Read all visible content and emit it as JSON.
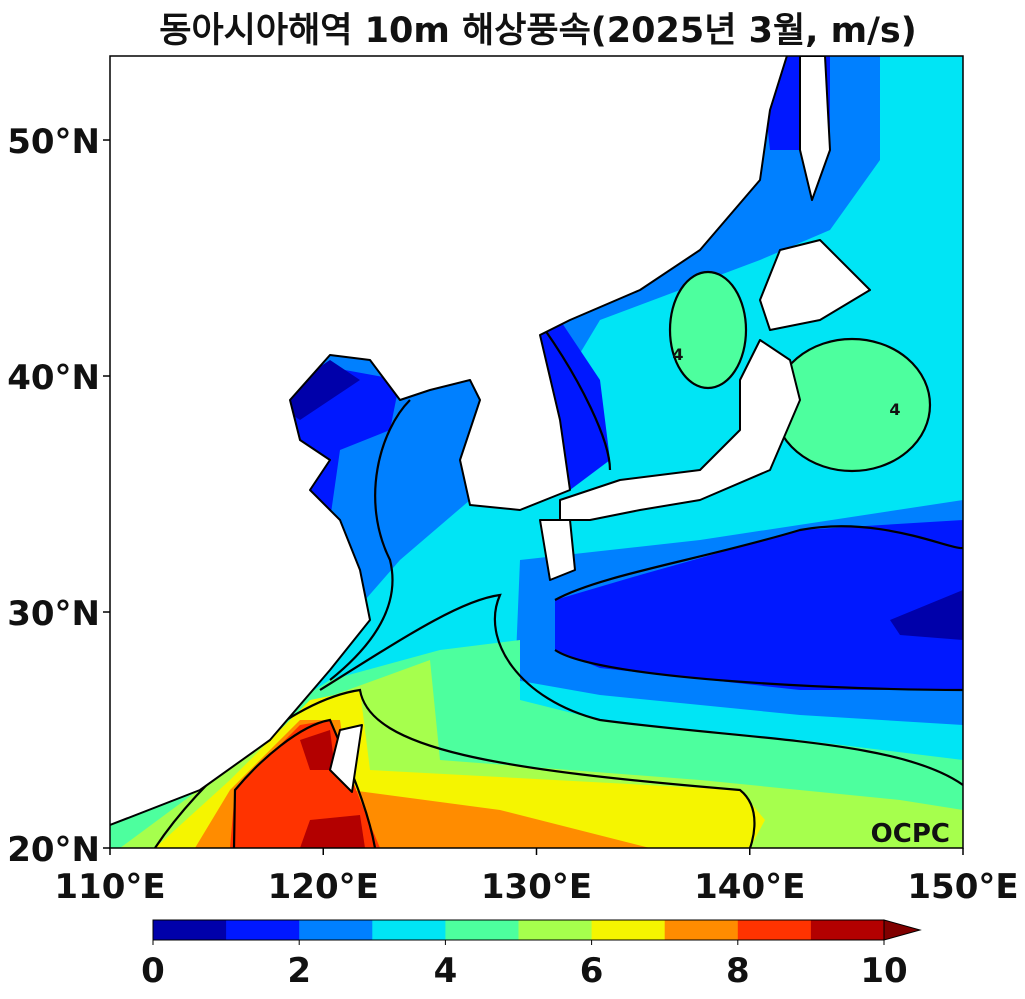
{
  "title": "동아시아해역 10m 해상풍속(2025년 3월, m/s)",
  "map": {
    "xlim": [
      110,
      150
    ],
    "ylim": [
      20,
      53.56
    ],
    "xticks": [
      {
        "value": 110,
        "label": "110°E"
      },
      {
        "value": 120,
        "label": "120°E"
      },
      {
        "value": 130,
        "label": "130°E"
      },
      {
        "value": 140,
        "label": "140°E"
      },
      {
        "value": 150,
        "label": "150°E"
      }
    ],
    "yticks": [
      {
        "value": 20,
        "label": "20°N"
      },
      {
        "value": 30,
        "label": "30°N"
      },
      {
        "value": 40,
        "label": "40°N"
      },
      {
        "value": 50,
        "label": "50°N"
      }
    ],
    "contour_labels": [
      "4",
      "4"
    ],
    "watermark": "OCPC"
  },
  "colorbar": {
    "range": [
      0,
      10
    ],
    "colors": [
      "#0000aa",
      "#0018ff",
      "#0080ff",
      "#00e5f5",
      "#4dff9e",
      "#a6ff4d",
      "#f5f500",
      "#ff8c00",
      "#ff3300",
      "#b30000"
    ],
    "extend_color": "#800000",
    "ticks": [
      0,
      2,
      4,
      6,
      8,
      10
    ]
  }
}
